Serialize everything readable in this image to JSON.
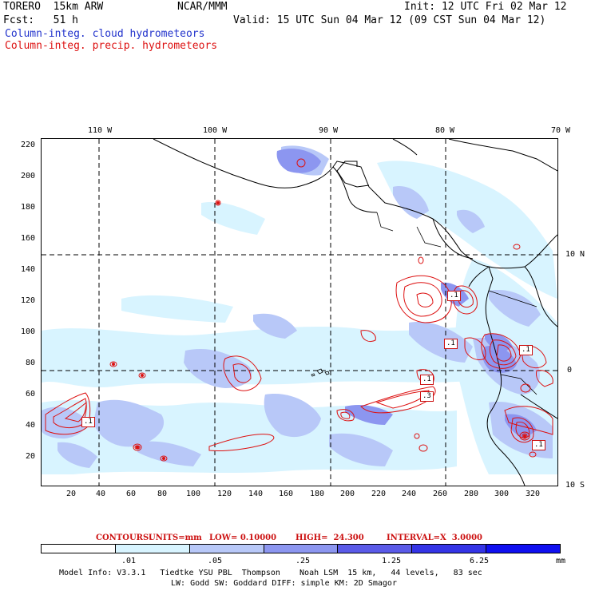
{
  "header": {
    "model": "TORERO  15km ARW",
    "agency": "NCAR/MMM",
    "init": "Init: 12 UTC Fri 02 Mar 12",
    "fcst": "Fcst:   51 h",
    "valid": "Valid: 15 UTC Sun 04 Mar 12 (09 CST Sun 04 Mar 12)",
    "field_cloud": "Column-integ. cloud hydrometeors",
    "field_precip": "Column-integ. precip. hydrometeors"
  },
  "map": {
    "lon_labels": [
      "110 W",
      "100 W",
      "90 W",
      "80 W",
      "70 W"
    ],
    "lat_labels": [
      "10 N",
      "0",
      "10 S"
    ],
    "y_ticks": [
      "220",
      "200",
      "180",
      "160",
      "140",
      "120",
      "100",
      "80",
      "60",
      "40",
      "20"
    ],
    "x_ticks": [
      "20",
      "40",
      "60",
      "80",
      "100",
      "120",
      "140",
      "160",
      "180",
      "200",
      "220",
      "240",
      "260",
      "280",
      "300",
      "320"
    ],
    "contour_labels": [
      ".1",
      ".1",
      ".1",
      ".1",
      ".3",
      ".1",
      ".1"
    ]
  },
  "contour_info": {
    "contours": "CONTOURS:",
    "units": "UNITS=mm",
    "low": "LOW= 0.10000",
    "high": "HIGH=  24.300",
    "interval": "INTERVAL=X  3.0000"
  },
  "legend": {
    "labels": [
      ".01",
      ".05",
      ".25",
      "1.25",
      "6.25"
    ],
    "unit": "mm",
    "colors": [
      "#ffffff",
      "#d8f4ff",
      "#b8c8f8",
      "#8c96f0",
      "#5a5ae8",
      "#3434e6",
      "#1010f0"
    ]
  },
  "footer": {
    "line1": "Model Info: V3.3.1   Tiedtke YSU PBL  Thompson    Noah LSM  15 km,   44 levels,   83 sec",
    "line2": "LW: Godd SW: Goddard DIFF: simple KM: 2D Smagor"
  }
}
